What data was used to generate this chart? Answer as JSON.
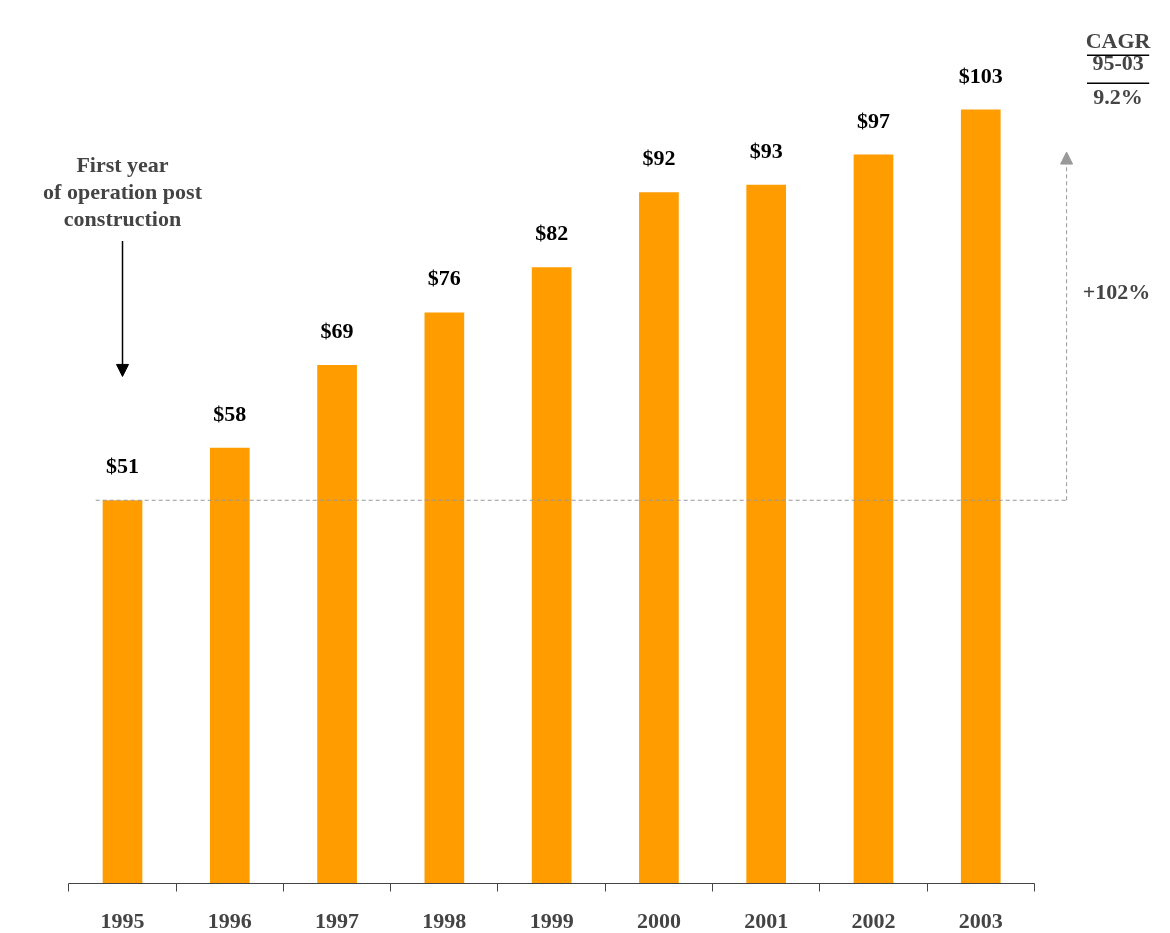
{
  "chart_data": {
    "type": "bar",
    "categories": [
      "1995",
      "1996",
      "1997",
      "1998",
      "1999",
      "2000",
      "2001",
      "2002",
      "2003"
    ],
    "values": [
      51,
      58,
      69,
      76,
      82,
      92,
      93,
      97,
      103
    ],
    "value_labels": [
      "$51",
      "$58",
      "$69",
      "$76",
      "$82",
      "$92",
      "$93",
      "$97",
      "$103"
    ],
    "color": "#ff9c00",
    "ref_lines": [
      {
        "axis": "y",
        "value": 51,
        "color": "#999999",
        "line_style": "dashed"
      }
    ],
    "annotations": [
      "First year\nof operation post\nconstruction",
      "+102%",
      "CAGR",
      "95-03",
      "9.2%"
    ],
    "grid": false
  }
}
